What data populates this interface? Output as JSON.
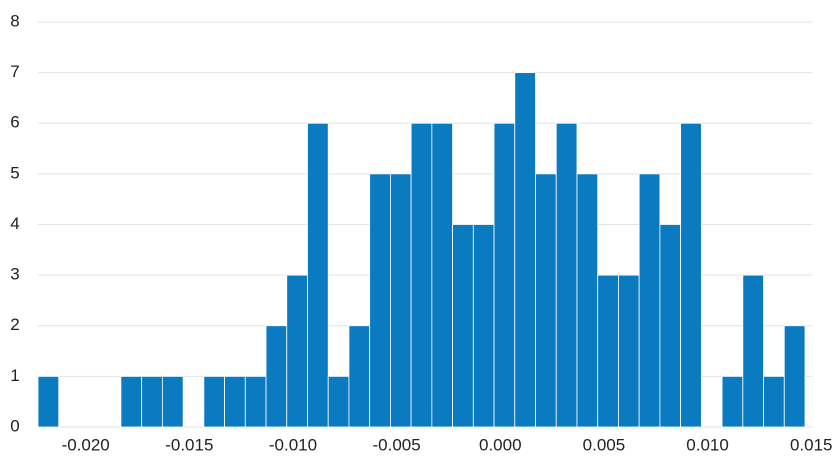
{
  "chart_data": {
    "type": "histogram",
    "bins": [
      -0.0223,
      -0.0213,
      -0.0203,
      -0.0193,
      -0.0183,
      -0.0173,
      -0.0163,
      -0.0153,
      -0.0143,
      -0.0133,
      -0.0123,
      -0.0113,
      -0.0103,
      -0.0093,
      -0.0083,
      -0.0073,
      -0.0063,
      -0.0053,
      -0.0043,
      -0.0033,
      -0.0023,
      -0.0013,
      -0.0003,
      0.0007,
      0.0017,
      0.0027,
      0.0037,
      0.0047,
      0.0057,
      0.0067,
      0.0077,
      0.0087,
      0.0097,
      0.0107,
      0.0117,
      0.0127,
      0.0137,
      0.0147
    ],
    "values": [
      1,
      0,
      0,
      0,
      1,
      1,
      1,
      0,
      1,
      1,
      1,
      2,
      3,
      6,
      1,
      2,
      5,
      5,
      6,
      6,
      4,
      4,
      6,
      7,
      5,
      6,
      5,
      3,
      3,
      5,
      4,
      6,
      0,
      1,
      3,
      1,
      2
    ],
    "color": "#0a7bc1",
    "xlim": [
      -0.0223,
      0.0147
    ],
    "xticks": [
      {
        "value": -0.02,
        "label": "-0.020"
      },
      -0.015,
      {
        "value": -0.01,
        "label": "-0.010"
      },
      -0.005,
      {
        "value": 0,
        "label": "0.000"
      },
      0.005,
      {
        "value": 0.01,
        "label": "0.010"
      },
      0.015
    ],
    "ylim": [
      0,
      8
    ],
    "yticks": [
      0,
      1,
      2,
      3,
      4,
      5,
      6,
      7,
      8
    ],
    "grid": true
  }
}
